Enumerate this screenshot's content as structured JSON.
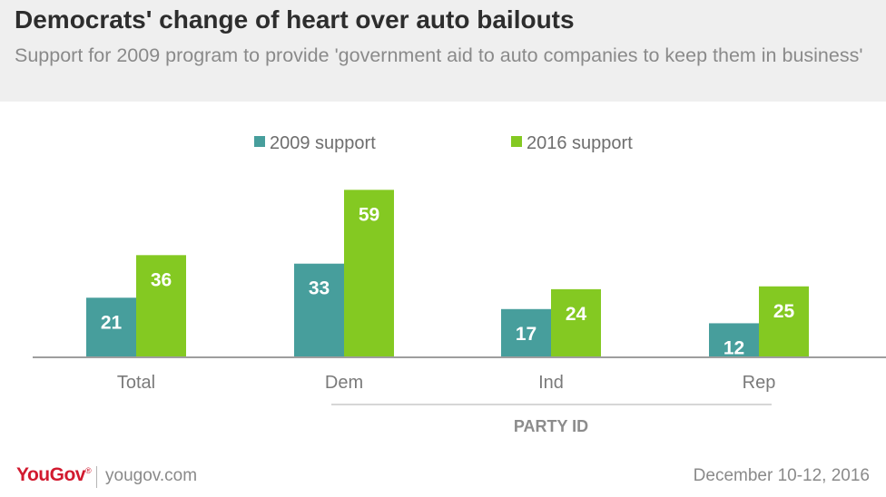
{
  "header": {
    "title": "Democrats' change of heart over auto bailouts",
    "subtitle": "Support for 2009 program to provide 'government aid to auto companies to keep them in business'"
  },
  "colors": {
    "series_2009": "#479e9c",
    "series_2016": "#84c922",
    "axis": "#9e9e9e"
  },
  "chart_data": {
    "type": "bar",
    "title": "Democrats' change of heart over auto bailouts",
    "subtitle": "Support for 2009 program to provide 'government aid to auto companies to keep them in business'",
    "categories": [
      "Total",
      "Dem",
      "Ind",
      "Rep"
    ],
    "series": [
      {
        "name": "2009 support",
        "values": [
          21,
          33,
          17,
          12
        ]
      },
      {
        "name": "2016 support",
        "values": [
          36,
          59,
          24,
          25
        ]
      }
    ],
    "group_label": "PARTY ID",
    "legend_position": "top-center",
    "ylim": [
      0,
      60
    ],
    "grid": false
  },
  "footer": {
    "logo": "YouGov",
    "logo_mark": "®",
    "url": "yougov.com",
    "date": "December 10-12, 2016"
  }
}
